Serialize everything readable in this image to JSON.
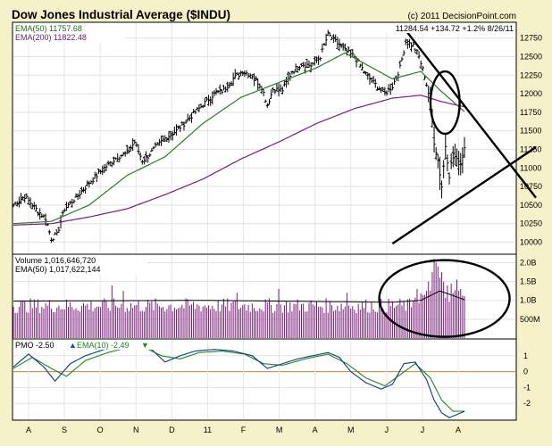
{
  "chart_data": [
    {
      "type": "bar",
      "panel": "price",
      "title": "Dow Jones Industrial Average ($INDU)",
      "copyright": "(c) 2011 DecisionPoint.com",
      "last_quote": "11284.54 +134.72 +1.2% 8/26/11",
      "ema50_label": "EMA(50) 11757.68",
      "ema200_label": "EMA(200) 11822.48",
      "ylim": [
        9850,
        12950
      ],
      "yticks": [
        10000,
        10250,
        10500,
        10750,
        11000,
        11250,
        11500,
        11750,
        12000,
        12250,
        12500,
        12750
      ],
      "ytick_labels": [
        "10000",
        "10250",
        "10500",
        "10750",
        "11000",
        "11250",
        "11500",
        "11750",
        "12000",
        "12250",
        "12500",
        "12750"
      ],
      "x_months": [
        "A",
        "S",
        "O",
        "N",
        "D",
        "11",
        "F",
        "M",
        "A",
        "M",
        "J",
        "J",
        "A"
      ],
      "close_anchors": [
        [
          0,
          10500
        ],
        [
          6,
          10620
        ],
        [
          11,
          10470
        ],
        [
          17,
          10320
        ],
        [
          20,
          10050
        ],
        [
          23,
          10100
        ],
        [
          27,
          10450
        ],
        [
          33,
          10600
        ],
        [
          40,
          10800
        ],
        [
          48,
          11000
        ],
        [
          55,
          11150
        ],
        [
          60,
          11200
        ],
        [
          64,
          11350
        ],
        [
          68,
          11100
        ],
        [
          70,
          11130
        ],
        [
          74,
          11250
        ],
        [
          80,
          11400
        ],
        [
          86,
          11500
        ],
        [
          90,
          11600
        ],
        [
          95,
          11730
        ],
        [
          100,
          11850
        ],
        [
          106,
          12000
        ],
        [
          111,
          12050
        ],
        [
          116,
          12200
        ],
        [
          121,
          12300
        ],
        [
          126,
          12250
        ],
        [
          131,
          12090
        ],
        [
          134,
          11850
        ],
        [
          137,
          12060
        ],
        [
          142,
          12050
        ],
        [
          147,
          12300
        ],
        [
          152,
          12400
        ],
        [
          157,
          12380
        ],
        [
          162,
          12500
        ],
        [
          166,
          12800
        ],
        [
          170,
          12700
        ],
        [
          175,
          12580
        ],
        [
          180,
          12500
        ],
        [
          185,
          12300
        ],
        [
          188,
          12200
        ],
        [
          192,
          12100
        ],
        [
          196,
          12000
        ],
        [
          200,
          12100
        ],
        [
          204,
          12350
        ],
        [
          207,
          12700
        ],
        [
          211,
          12650
        ],
        [
          214,
          12500
        ],
        [
          217,
          12240
        ],
        [
          220,
          11900
        ],
        [
          222,
          11350
        ],
        [
          224,
          11100
        ],
        [
          226,
          10750
        ],
        [
          228,
          11300
        ],
        [
          230,
          10900
        ],
        [
          232,
          11200
        ],
        [
          234,
          11100
        ],
        [
          236,
          11050
        ],
        [
          238,
          11280
        ]
      ],
      "ema50_anchors": [
        [
          0,
          10250
        ],
        [
          20,
          10280
        ],
        [
          40,
          10500
        ],
        [
          60,
          10900
        ],
        [
          80,
          11150
        ],
        [
          100,
          11600
        ],
        [
          120,
          11950
        ],
        [
          140,
          12150
        ],
        [
          160,
          12350
        ],
        [
          175,
          12550
        ],
        [
          200,
          12200
        ],
        [
          215,
          12300
        ],
        [
          225,
          12050
        ],
        [
          238,
          11757.68
        ]
      ],
      "ema200_anchors": [
        [
          0,
          10230
        ],
        [
          20,
          10250
        ],
        [
          40,
          10340
        ],
        [
          60,
          10450
        ],
        [
          80,
          10640
        ],
        [
          100,
          10850
        ],
        [
          120,
          11120
        ],
        [
          140,
          11350
        ],
        [
          160,
          11600
        ],
        [
          180,
          11800
        ],
        [
          200,
          11940
        ],
        [
          215,
          11980
        ],
        [
          225,
          11900
        ],
        [
          238,
          11822.48
        ]
      ],
      "annotations": [
        {
          "kind": "line",
          "from": [
            205,
            12920
          ],
          "to": [
            238,
            10600
          ]
        },
        {
          "kind": "line",
          "from": [
            200,
            9980
          ],
          "to": [
            238,
            11280
          ]
        },
        {
          "kind": "ellipse",
          "center": [
            224,
            11880
          ],
          "rx_days": 3.5,
          "ry_value": 420
        }
      ],
      "n_days": 239
    },
    {
      "type": "bar",
      "panel": "volume",
      "volume_label": "Volume 1,016,646,720",
      "ema50_label": "EMA(50) 1,017,622,144",
      "ylim": [
        0,
        2200000000
      ],
      "yticks": [
        500000000,
        1000000000,
        1500000000,
        2000000000
      ],
      "ytick_labels": [
        "500M",
        "1.0B",
        "1.5B",
        "2.0B"
      ],
      "baseline_volume": 880000000,
      "volume_spikes": [
        [
          52,
          1400000000
        ],
        [
          58,
          1250000000
        ],
        [
          118,
          1200000000
        ],
        [
          140,
          1300000000
        ],
        [
          176,
          1200000000
        ],
        [
          213,
          1300000000
        ],
        [
          219,
          1500000000
        ],
        [
          221,
          1750000000
        ],
        [
          222,
          2100000000
        ],
        [
          223,
          2000000000
        ],
        [
          224,
          1900000000
        ],
        [
          225,
          1600000000
        ],
        [
          226,
          1750000000
        ],
        [
          227,
          1500000000
        ],
        [
          229,
          1400000000
        ],
        [
          231,
          1450000000
        ],
        [
          234,
          1550000000
        ],
        [
          236,
          1300000000
        ]
      ],
      "ema50_anchors": [
        [
          0,
          980000000
        ],
        [
          100,
          1000000000
        ],
        [
          200,
          950000000
        ],
        [
          215,
          1000000000
        ],
        [
          225,
          1250000000
        ],
        [
          238,
          1017622144
        ]
      ],
      "annotations": [
        {
          "kind": "ellipse",
          "center": [
            218,
            1050000000
          ],
          "rx_days": 25,
          "ry_value": 1000000000
        }
      ]
    },
    {
      "type": "line",
      "panel": "pmo",
      "pmo_label": "PMO -2.50",
      "ema10_label": "EMA(10) -2.49",
      "ylim": [
        -3,
        2
      ],
      "yticks": [
        -2,
        -1,
        0,
        1
      ],
      "ytick_labels": [
        "-2",
        "-1",
        "0",
        "1"
      ],
      "pmo_anchors": [
        [
          0,
          0.3
        ],
        [
          8,
          1.1
        ],
        [
          16,
          0.3
        ],
        [
          22,
          -0.6
        ],
        [
          30,
          0.5
        ],
        [
          38,
          1.0
        ],
        [
          48,
          1.4
        ],
        [
          56,
          1.5
        ],
        [
          64,
          1.8
        ],
        [
          72,
          1.5
        ],
        [
          80,
          0.6
        ],
        [
          88,
          1.0
        ],
        [
          96,
          1.3
        ],
        [
          106,
          1.4
        ],
        [
          116,
          1.3
        ],
        [
          126,
          1.0
        ],
        [
          134,
          0.2
        ],
        [
          142,
          0.5
        ],
        [
          150,
          0.8
        ],
        [
          158,
          1.0
        ],
        [
          166,
          1.2
        ],
        [
          172,
          0.9
        ],
        [
          178,
          0.0
        ],
        [
          186,
          -0.7
        ],
        [
          194,
          -1.1
        ],
        [
          200,
          -0.8
        ],
        [
          206,
          0.5
        ],
        [
          212,
          0.6
        ],
        [
          218,
          -0.5
        ],
        [
          222,
          -1.8
        ],
        [
          226,
          -2.6
        ],
        [
          230,
          -2.9
        ],
        [
          234,
          -2.7
        ],
        [
          238,
          -2.5
        ]
      ],
      "signal_anchors": [
        [
          0,
          0.2
        ],
        [
          10,
          0.9
        ],
        [
          20,
          0.2
        ],
        [
          28,
          -0.3
        ],
        [
          38,
          0.7
        ],
        [
          50,
          1.2
        ],
        [
          60,
          1.5
        ],
        [
          68,
          1.6
        ],
        [
          78,
          1.0
        ],
        [
          88,
          0.8
        ],
        [
          98,
          1.2
        ],
        [
          110,
          1.3
        ],
        [
          122,
          1.1
        ],
        [
          132,
          0.5
        ],
        [
          142,
          0.4
        ],
        [
          154,
          0.8
        ],
        [
          166,
          1.1
        ],
        [
          176,
          0.5
        ],
        [
          186,
          -0.4
        ],
        [
          196,
          -0.9
        ],
        [
          204,
          -0.2
        ],
        [
          212,
          0.5
        ],
        [
          220,
          -0.4
        ],
        [
          226,
          -1.8
        ],
        [
          232,
          -2.5
        ],
        [
          238,
          -2.49
        ]
      ]
    }
  ]
}
